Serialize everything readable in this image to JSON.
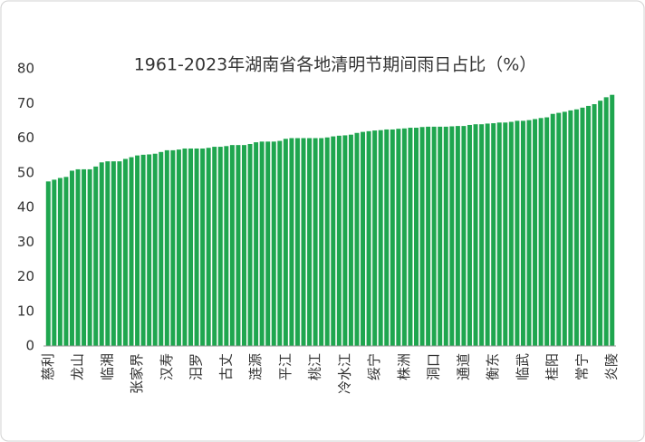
{
  "chart_data": {
    "type": "bar",
    "title": "1961-2023年湖南省各地清明节期间雨日占比（%）",
    "categories": [
      "慈利",
      null,
      null,
      null,
      null,
      "龙山",
      null,
      null,
      null,
      null,
      "临湘",
      null,
      null,
      null,
      null,
      "张家界",
      null,
      null,
      null,
      null,
      "汉寿",
      null,
      null,
      null,
      null,
      "汨罗",
      null,
      null,
      null,
      null,
      "古丈",
      null,
      null,
      null,
      null,
      "涟源",
      null,
      null,
      null,
      null,
      "平江",
      null,
      null,
      null,
      null,
      "桃江",
      null,
      null,
      null,
      null,
      "冷水江",
      null,
      null,
      null,
      null,
      "绥宁",
      null,
      null,
      null,
      null,
      "株洲",
      null,
      null,
      null,
      null,
      "洞口",
      null,
      null,
      null,
      null,
      "通道",
      null,
      null,
      null,
      null,
      "衡东",
      null,
      null,
      null,
      null,
      "临武",
      null,
      null,
      null,
      null,
      "桂阳",
      null,
      null,
      null,
      null,
      "常宁",
      null,
      null,
      null,
      null,
      "炎陵"
    ],
    "values": [
      47.5,
      48,
      48.5,
      48.8,
      50.6,
      51,
      51,
      51,
      51.8,
      53,
      53.3,
      53.3,
      53.3,
      54,
      54.5,
      55,
      55.2,
      55.3,
      55.5,
      56,
      56.5,
      56.5,
      56.7,
      57,
      57,
      57,
      57,
      57.2,
      57.5,
      57.5,
      57.7,
      58,
      58,
      58,
      58.3,
      58.8,
      59,
      59,
      59,
      59.2,
      59.8,
      60,
      60,
      60,
      60,
      60,
      60,
      60.2,
      60.5,
      60.7,
      60.8,
      61,
      61.5,
      61.8,
      62,
      62.2,
      62.3,
      62.5,
      62.5,
      62.7,
      62.8,
      63,
      63,
      63.2,
      63.3,
      63.3,
      63.3,
      63.3,
      63.4,
      63.5,
      63.5,
      63.8,
      64,
      64,
      64.2,
      64.3,
      64.5,
      64.5,
      64.7,
      65,
      65,
      65.2,
      65.5,
      65.8,
      66,
      67,
      67.3,
      67.6,
      68,
      68.3,
      68.8,
      69.3,
      69.8,
      70.8,
      71.8,
      72.5
    ],
    "color": "#1fa64f",
    "ylim": [
      0,
      80
    ],
    "yticks": [
      0,
      10,
      20,
      30,
      40,
      50,
      60,
      70,
      80
    ],
    "grid": false
  }
}
